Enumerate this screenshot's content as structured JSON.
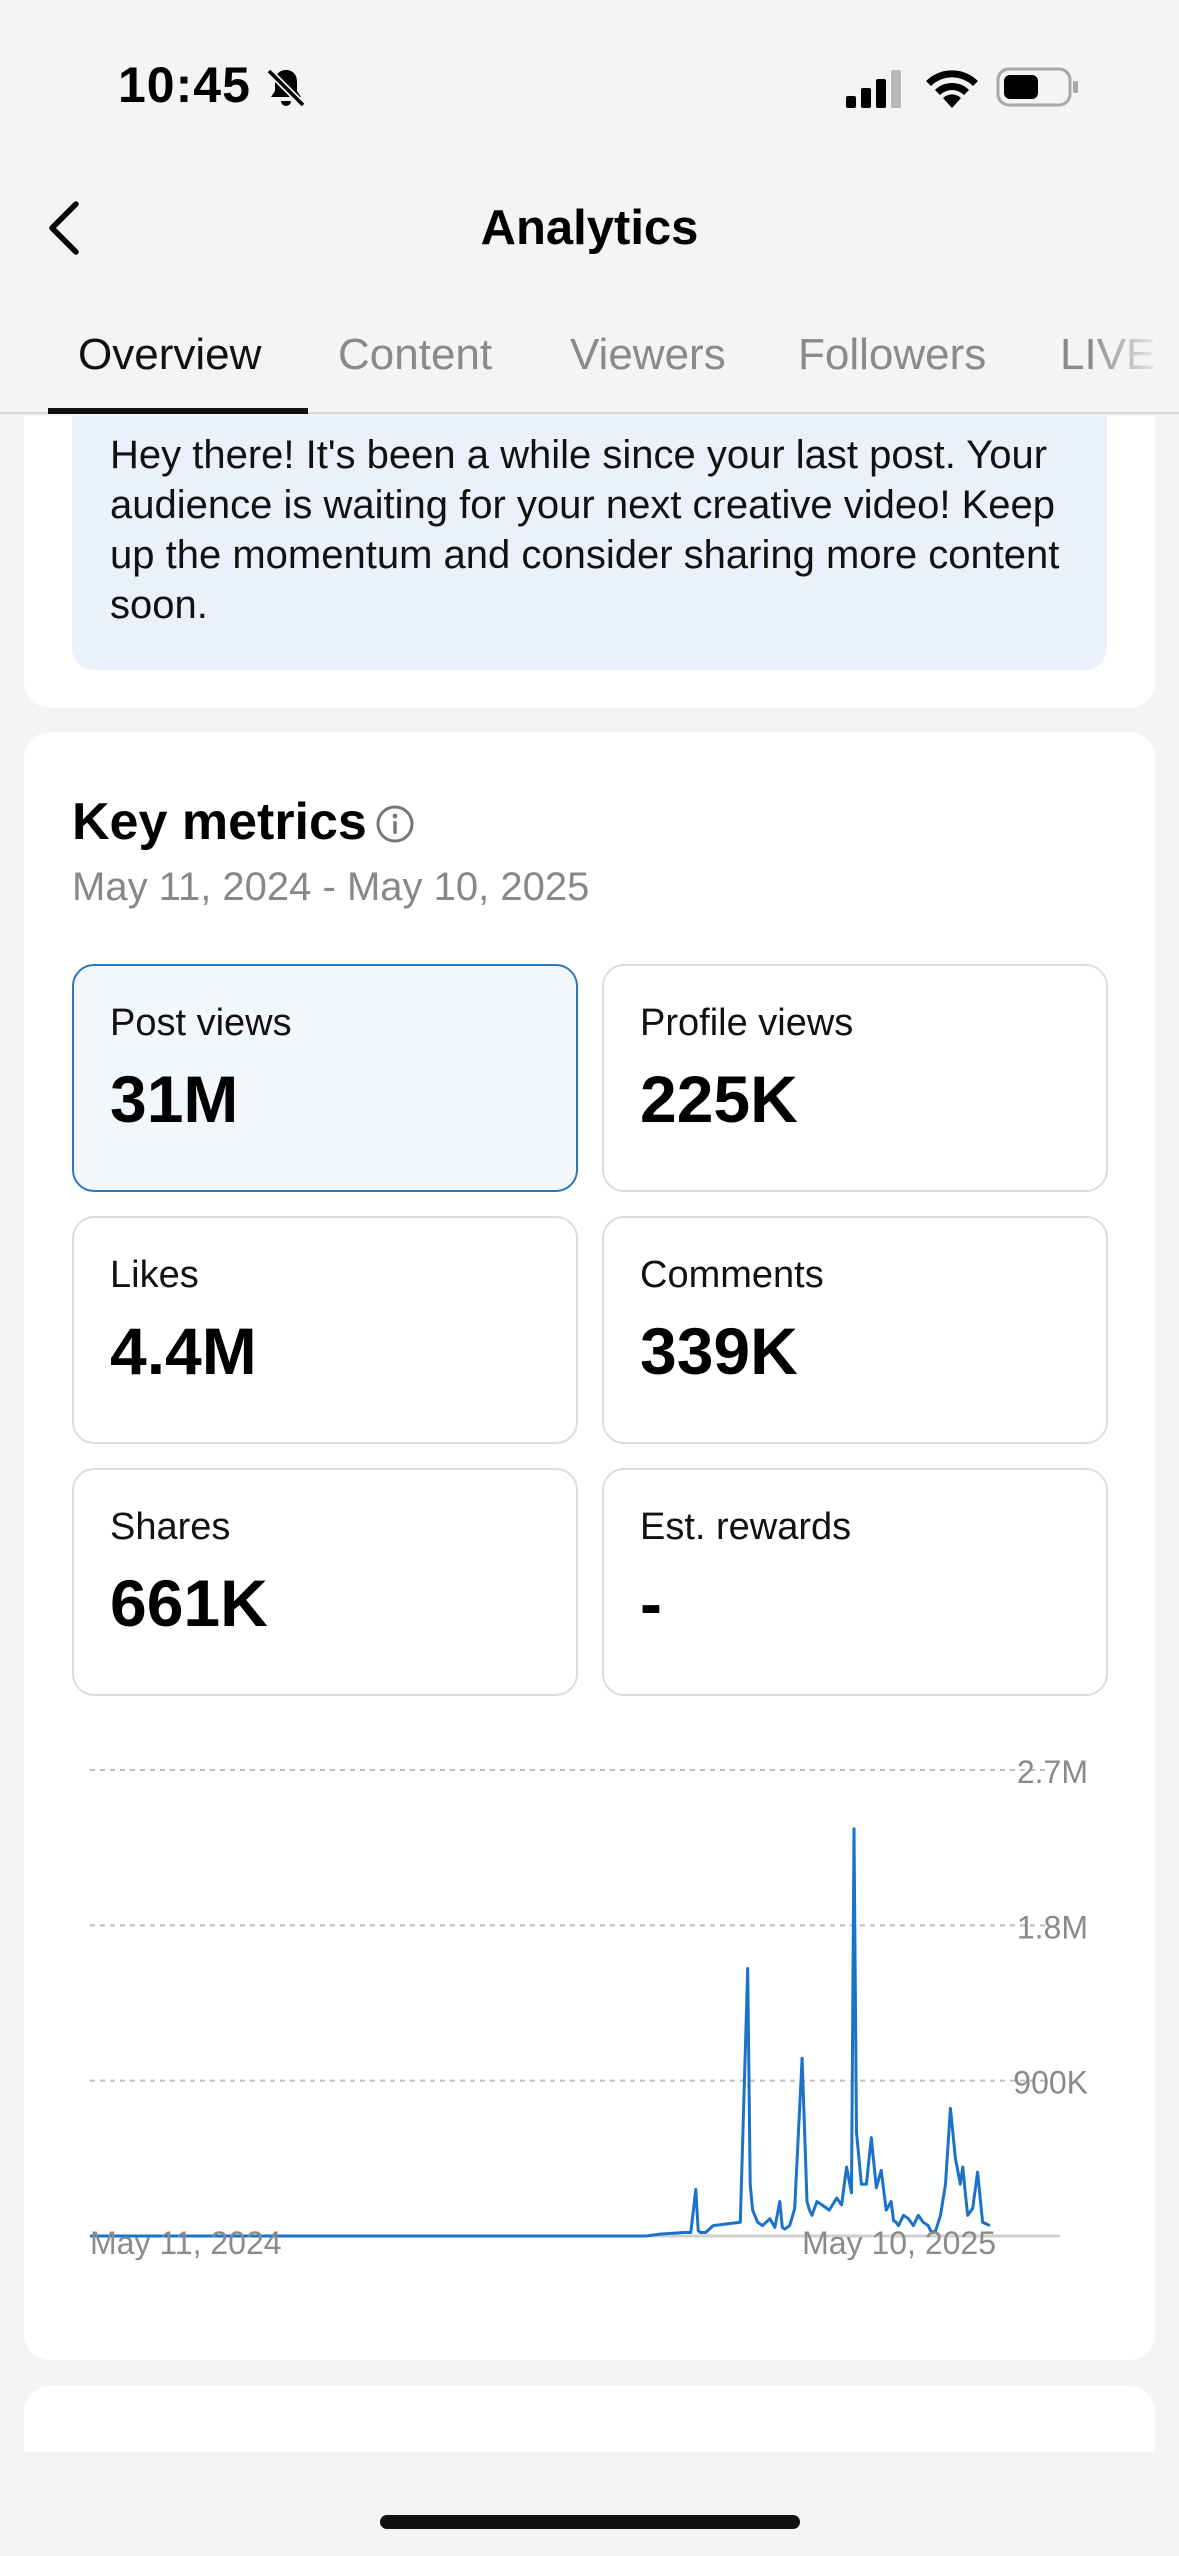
{
  "status_bar": {
    "time": "10:45"
  },
  "header": {
    "title": "Analytics"
  },
  "tabs": [
    {
      "label": "Overview",
      "active": true
    },
    {
      "label": "Content",
      "active": false
    },
    {
      "label": "Viewers",
      "active": false
    },
    {
      "label": "Followers",
      "active": false
    },
    {
      "label": "LIVE",
      "active": false
    }
  ],
  "notice": {
    "text": "Hey there! It's been a while since your last post. Your audience is waiting for your next creative video! Keep up the momentum and consider sharing more content soon."
  },
  "key_metrics": {
    "title": "Key metrics",
    "date_range": "May 11, 2024 - May 10, 2025",
    "cards": [
      {
        "label": "Post views",
        "value": "31M",
        "selected": true
      },
      {
        "label": "Profile views",
        "value": "225K",
        "selected": false
      },
      {
        "label": "Likes",
        "value": "4.4M",
        "selected": false
      },
      {
        "label": "Comments",
        "value": "339K",
        "selected": false
      },
      {
        "label": "Shares",
        "value": "661K",
        "selected": false
      },
      {
        "label": "Est. rewards",
        "value": "-",
        "selected": false
      }
    ]
  },
  "colors": {
    "accent": "#1a73c8",
    "selected_border": "#2a78b8",
    "selected_bg": "#f3f7fc",
    "notice_bg": "#eaf1fb"
  },
  "chart_data": {
    "type": "line",
    "title": "",
    "xlabel": "",
    "ylabel": "",
    "x_tick_labels": [
      "May 11, 2024",
      "May 10, 2025"
    ],
    "y_tick_labels": [
      "900K",
      "1.8M",
      "2.7M"
    ],
    "y_ticks": [
      900000,
      1800000,
      2700000
    ],
    "ylim": [
      0,
      2700000
    ],
    "xlim": [
      0,
      364
    ],
    "grid": true,
    "series": [
      {
        "x": [
          0,
          225,
          230,
          240,
          243,
          245,
          246,
          247,
          249,
          252,
          263,
          266,
          267,
          268,
          270,
          272,
          275,
          277,
          279,
          280,
          281,
          283,
          285,
          288,
          290,
          291,
          292,
          294,
          296,
          299,
          302,
          304,
          306,
          308,
          309,
          310,
          312,
          314,
          316,
          318,
          320,
          322,
          324,
          325,
          326,
          327,
          329,
          331,
          333,
          335,
          337,
          339,
          340,
          341,
          342,
          344,
          346,
          348,
          350,
          352,
          353,
          354,
          355,
          357,
          359,
          361,
          364
        ],
        "values": [
          0,
          0,
          10000,
          20000,
          20000,
          270000,
          30000,
          20000,
          20000,
          60000,
          80000,
          1550000,
          300000,
          150000,
          80000,
          60000,
          100000,
          50000,
          200000,
          50000,
          40000,
          60000,
          160000,
          1030000,
          200000,
          150000,
          120000,
          200000,
          180000,
          150000,
          220000,
          180000,
          400000,
          250000,
          2360000,
          600000,
          300000,
          300000,
          570000,
          280000,
          380000,
          150000,
          200000,
          90000,
          80000,
          60000,
          120000,
          100000,
          60000,
          120000,
          80000,
          60000,
          30000,
          20000,
          30000,
          120000,
          300000,
          740000,
          450000,
          300000,
          400000,
          250000,
          120000,
          160000,
          370000,
          80000,
          60000
        ]
      }
    ]
  }
}
